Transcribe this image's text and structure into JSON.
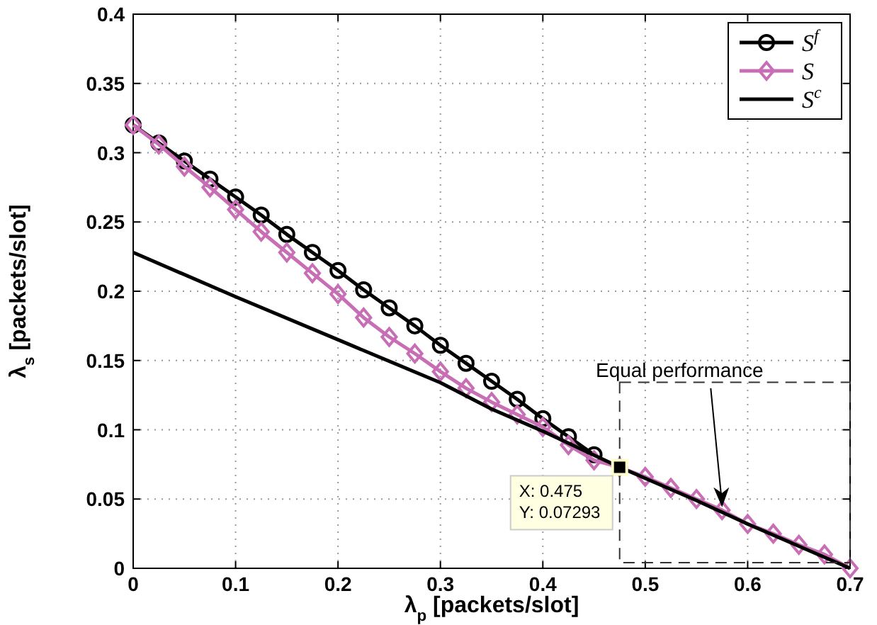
{
  "chart_data": {
    "type": "line",
    "xlabel": "λ$_{p}$ [packets/slot]",
    "ylabel": "λ$_{s}$ [packets/slot]",
    "xlim": [
      0,
      0.7
    ],
    "xticks": [
      0,
      0.1,
      0.2,
      0.3,
      0.4,
      0.5,
      0.6,
      0.7
    ],
    "ylim": [
      0,
      0.4
    ],
    "yticks": [
      0,
      0.05,
      0.1,
      0.15,
      0.2,
      0.25,
      0.3,
      0.35,
      0.4
    ],
    "grid": true,
    "legend": "top right",
    "series": [
      {
        "name": "S$^{f}$",
        "color": "#000000",
        "marker": "circle",
        "x": [
          0,
          0.025,
          0.05,
          0.075,
          0.1,
          0.125,
          0.15,
          0.175,
          0.2,
          0.225,
          0.25,
          0.275,
          0.3,
          0.325,
          0.35,
          0.375,
          0.4,
          0.425,
          0.45
        ],
        "values": [
          0.32,
          0.307,
          0.294,
          0.281,
          0.268,
          0.255,
          0.241,
          0.228,
          0.215,
          0.201,
          0.188,
          0.175,
          0.161,
          0.148,
          0.135,
          0.122,
          0.108,
          0.095,
          0.082
        ]
      },
      {
        "name": "S",
        "color": "#c86eb4",
        "marker": "diamond",
        "x": [
          0,
          0.025,
          0.05,
          0.075,
          0.1,
          0.125,
          0.15,
          0.175,
          0.2,
          0.225,
          0.25,
          0.275,
          0.3,
          0.325,
          0.35,
          0.375,
          0.4,
          0.425,
          0.45,
          0.475,
          0.5,
          0.525,
          0.55,
          0.575,
          0.6,
          0.625,
          0.65,
          0.675,
          0.7
        ],
        "values": [
          0.32,
          0.306,
          0.29,
          0.275,
          0.259,
          0.243,
          0.228,
          0.213,
          0.198,
          0.181,
          0.167,
          0.155,
          0.142,
          0.13,
          0.12,
          0.111,
          0.102,
          0.089,
          0.078,
          0.073,
          0.066,
          0.058,
          0.05,
          0.042,
          0.032,
          0.025,
          0.017,
          0.01,
          0
        ]
      },
      {
        "name": "S$^{c}$",
        "color": "#000000",
        "marker": "none",
        "x": [
          0,
          0.1,
          0.2,
          0.3,
          0.35,
          0.4,
          0.475,
          0.5,
          0.55,
          0.6,
          0.65,
          0.7
        ],
        "values": [
          0.228,
          0.196,
          0.165,
          0.134,
          0.115,
          0.099,
          0.073,
          0.065,
          0.049,
          0.032,
          0.016,
          0
        ]
      }
    ],
    "annotations": [
      {
        "text": "Equal performance",
        "x": 0.575,
        "y": 0.04
      },
      {
        "text": "X: 0.475\nY: 0.07293",
        "x": 0.475,
        "y": 0.07293
      }
    ]
  }
}
